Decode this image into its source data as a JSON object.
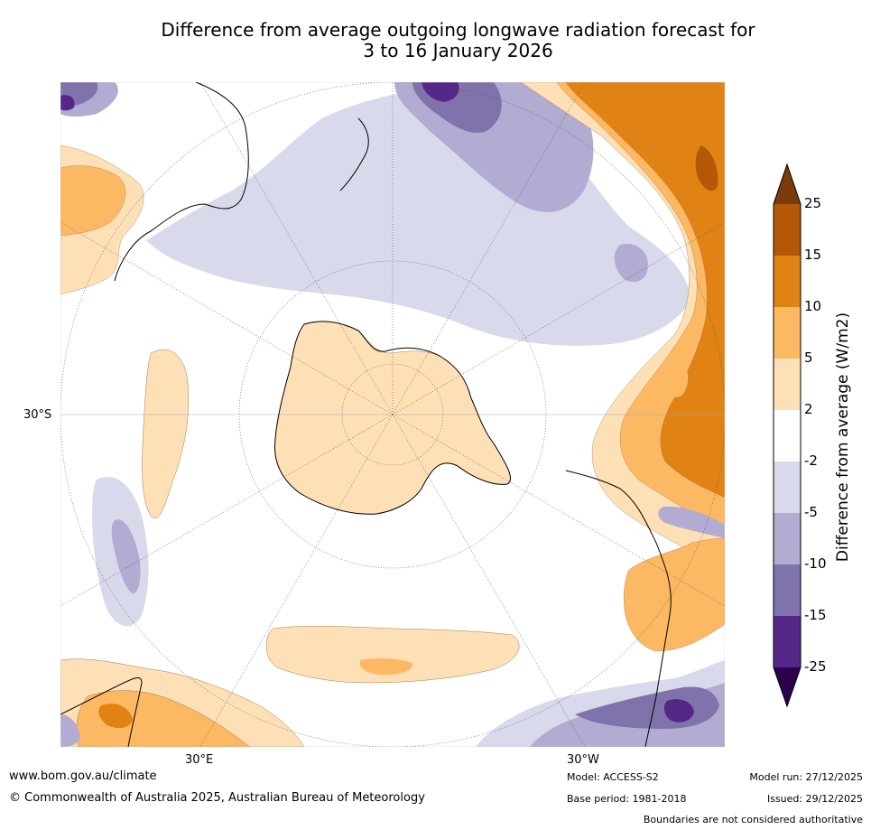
{
  "title": {
    "line1": "Difference from average outgoing longwave radiation forecast for",
    "line2": "3 to 16 January 2026"
  },
  "map": {
    "projection": "south-polar-stereographic",
    "longitude_labels": [
      "30°E",
      "30°W"
    ],
    "latitude_labels": [
      "30°S"
    ]
  },
  "colorbar": {
    "label": "Difference from average (W/m2)",
    "ticks": [
      "25",
      "15",
      "10",
      "5",
      "2",
      "-2",
      "-5",
      "-10",
      "-15",
      "-25"
    ],
    "colors": {
      "extend_high": "#7a3a0a",
      "gt15": "#b35806",
      "10_15": "#e08214",
      "5_10": "#fdb863",
      "2_5": "#fee0b6",
      "neutral": "#ffffff",
      "m2_m5": "#d8daeb",
      "m5_m10": "#b2abd2",
      "m10_m15": "#8073ac",
      "m15_m25": "#542788",
      "extend_low": "#2d004b"
    }
  },
  "footer": {
    "website": "www.bom.gov.au/climate",
    "copyright": "© Commonwealth of Australia 2025, Australian Bureau of Meteorology",
    "model": "Model: ACCESS-S2",
    "base_period": "Base period: 1981-2018",
    "model_run": "Model run: 27/12/2025",
    "issued": "Issued: 29/12/2025",
    "disclaimer": "Boundaries are not considered authoritative"
  }
}
